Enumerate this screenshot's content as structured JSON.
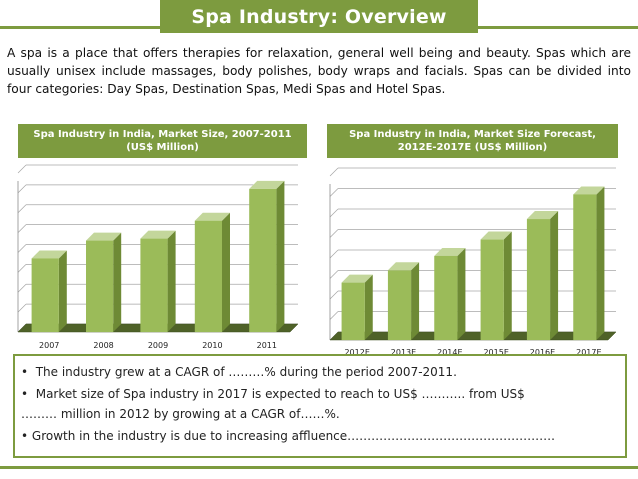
{
  "title": "Spa Industry: Overview",
  "intro": "A spa is a place that offers therapies for relaxation, general well being and beauty. Spas which are usually unisex include massages, body polishes, body wraps and facials. Spas can be divided into four categories: Day Spas, Destination Spas, Medi Spas and Hotel Spas.",
  "colors": {
    "accent": "#7d9b3f",
    "bar_front": "#9bbb59",
    "bar_side": "#6e8a35",
    "bar_top": "#c3d69b"
  },
  "chart_data": [
    {
      "type": "bar",
      "title": "Spa Industry in India, Market Size, 2007-2011 (US$ Million)",
      "categories": [
        "2007",
        "2008",
        "2009",
        "2010",
        "2011"
      ],
      "values": [
        37,
        46,
        47,
        56,
        72
      ],
      "ylim": [
        0,
        80
      ],
      "xlabel": "",
      "ylabel": "",
      "grid": true
    },
    {
      "type": "bar",
      "title": "Spa Industry in India, Market Size Forecast, 2012E-2017E (US$ Million)",
      "categories": [
        "2012E",
        "2013E",
        "2014E",
        "2015E",
        "2016E",
        "2017E"
      ],
      "values": [
        28,
        34,
        41,
        49,
        59,
        71
      ],
      "ylim": [
        0,
        80
      ],
      "xlabel": "",
      "ylabel": "",
      "grid": true
    }
  ],
  "bullets": {
    "b1": "The industry grew at a CAGR of ………% during the period 2007-2011.",
    "b2": "Market size of Spa industry in 2017 is expected to reach to US$ ……….. from US$",
    "b2_cont": "……… million in 2012 by growing at a CAGR of……%.",
    "b3": "Growth in the industry is due to increasing affluence……………………………………………."
  }
}
